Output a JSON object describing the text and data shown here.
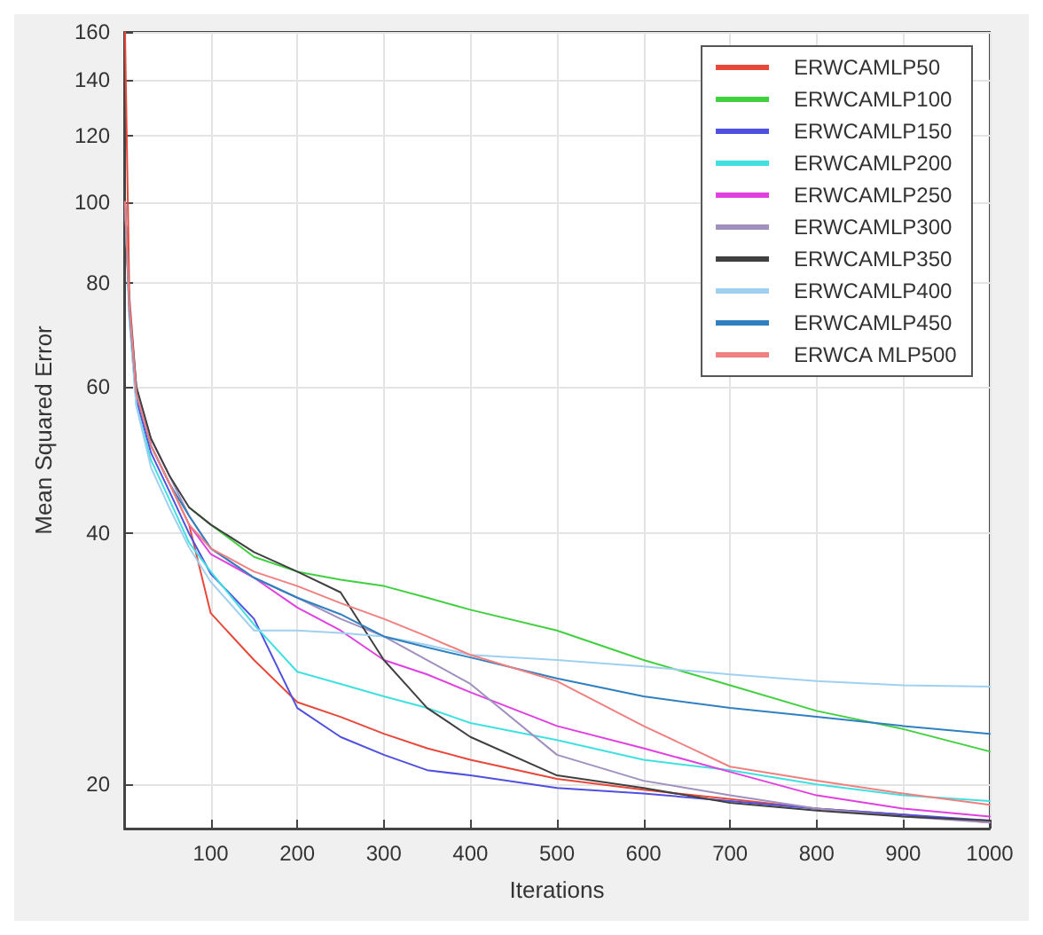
{
  "chart_data": {
    "type": "line",
    "xlabel": "Iterations",
    "ylabel": "Mean Squared Error",
    "log": "y",
    "grid": true,
    "legend": "top right",
    "marker": "none",
    "line_style": "solid",
    "x": [
      1,
      6,
      14,
      31,
      52,
      75,
      100,
      150,
      200,
      250,
      300,
      350,
      400,
      500,
      600,
      700,
      800,
      900,
      1000
    ],
    "xlim": [
      0,
      1000
    ],
    "xticks": [
      100,
      200,
      300,
      400,
      500,
      600,
      700,
      800,
      900,
      1000
    ],
    "ylim": [
      17.7,
      160
    ],
    "yticks": [
      20,
      40,
      60,
      80,
      100,
      120,
      140,
      160
    ],
    "series": [
      {
        "name": "ERWCAMLP50",
        "color": "#e8483a",
        "values": [
          160,
          77,
          60,
          51,
          46,
          41,
          32.1,
          28.2,
          25.1,
          24.1,
          23.0,
          22.1,
          21.4,
          20.3,
          19.7,
          19.2,
          18.7,
          18.4,
          18.0
        ]
      },
      {
        "name": "ERWCAMLP100",
        "color": "#40d040",
        "values": [
          null,
          null,
          null,
          null,
          null,
          43,
          41,
          37.5,
          36.0,
          35.2,
          34.6,
          33.5,
          32.4,
          30.6,
          28.2,
          26.3,
          24.5,
          23.3,
          21.9
        ]
      },
      {
        "name": "ERWCAMLP150",
        "color": "#5050e0",
        "values": [
          100,
          74,
          58,
          50,
          45,
          40,
          35.8,
          31.6,
          24.7,
          22.8,
          21.7,
          20.8,
          20.5,
          19.8,
          19.5,
          19.1,
          18.7,
          18.4,
          18.1
        ]
      },
      {
        "name": "ERWCAMLP200",
        "color": "#40e0e0",
        "values": [
          100,
          73,
          57,
          49,
          44,
          39,
          36,
          31.1,
          27.3,
          26.4,
          25.5,
          24.7,
          23.7,
          22.6,
          21.4,
          20.8,
          20.0,
          19.4,
          19.1
        ]
      },
      {
        "name": "ERWCAMLP250",
        "color": "#e040e0",
        "values": [
          null,
          null,
          null,
          null,
          null,
          41,
          37.8,
          35.4,
          32.6,
          30.6,
          28.2,
          27.1,
          25.8,
          23.5,
          22.1,
          20.7,
          19.4,
          18.7,
          18.3
        ]
      },
      {
        "name": "ERWCAMLP300",
        "color": "#a090c0",
        "values": [
          100,
          76,
          60,
          52,
          47,
          42,
          38.4,
          35.4,
          33.5,
          31.6,
          30.1,
          28.2,
          26.4,
          21.7,
          20.2,
          19.4,
          18.7,
          18.3,
          18.0
        ]
      },
      {
        "name": "ERWCAMLP350",
        "color": "#404040",
        "values": [
          100,
          75,
          60,
          52,
          47,
          43,
          41,
          38,
          36.0,
          34.0,
          28.2,
          24.7,
          22.8,
          20.5,
          19.8,
          19.0,
          18.6,
          18.3,
          18.1
        ]
      },
      {
        "name": "ERWCAMLP400",
        "color": "#a0d0f0",
        "values": [
          100,
          72,
          57,
          48,
          43,
          38.5,
          35,
          30.6,
          30.6,
          30.4,
          30.1,
          29.4,
          28.6,
          28.2,
          27.7,
          27.1,
          26.6,
          26.3,
          26.2
        ]
      },
      {
        "name": "ERWCAMLP450",
        "color": "#3080c0",
        "values": [
          100,
          74,
          59,
          51,
          46,
          42,
          38.4,
          35.4,
          33.5,
          32.0,
          30.1,
          29.2,
          28.4,
          26.8,
          25.5,
          24.7,
          24.1,
          23.5,
          23.0
        ]
      },
      {
        "name": "ERWCA MLP500",
        "color": "#f08080",
        "values": [
          100,
          75,
          59,
          51,
          46,
          41,
          38.4,
          36,
          34.6,
          33,
          31.6,
          30.1,
          28.6,
          26.6,
          23.5,
          21.0,
          20.2,
          19.5,
          18.9
        ]
      }
    ]
  }
}
